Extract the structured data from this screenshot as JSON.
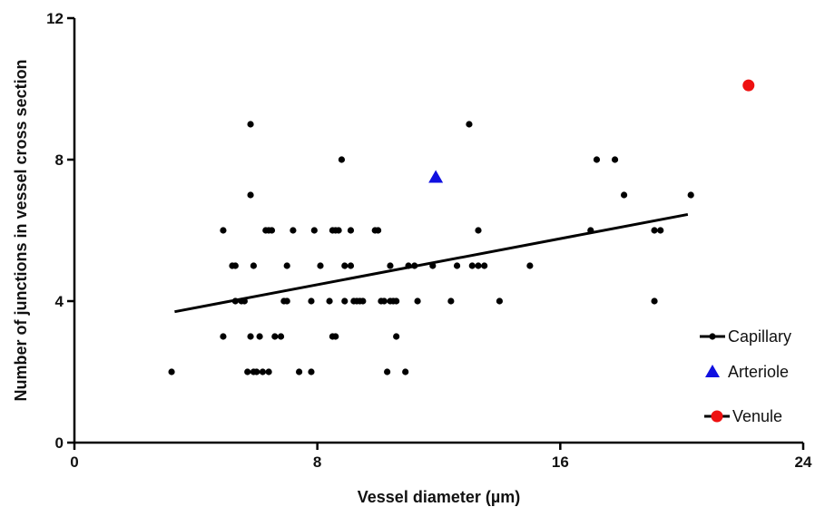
{
  "chart_data": {
    "type": "scatter",
    "title": "",
    "xlabel": "Vessel diameter (µm)",
    "ylabel": "Number of junctions in vessel cross section",
    "xlim": [
      0,
      24
    ],
    "ylim": [
      0,
      12
    ],
    "xticks": [
      0,
      8,
      16,
      24
    ],
    "yticks": [
      0,
      4,
      8,
      12
    ],
    "grid": false,
    "legend_position": "bottom-right",
    "series": [
      {
        "name": "Capillary",
        "marker": "circle-small",
        "color": "#000000",
        "points": [
          [
            3.2,
            2
          ],
          [
            4.9,
            6
          ],
          [
            4.9,
            3
          ],
          [
            5.2,
            5
          ],
          [
            5.3,
            5
          ],
          [
            5.3,
            4
          ],
          [
            5.5,
            4
          ],
          [
            5.6,
            4
          ],
          [
            5.7,
            2
          ],
          [
            5.8,
            9
          ],
          [
            5.8,
            7
          ],
          [
            5.8,
            3
          ],
          [
            5.9,
            2
          ],
          [
            5.9,
            5
          ],
          [
            6.0,
            2
          ],
          [
            6.1,
            3
          ],
          [
            6.2,
            2
          ],
          [
            6.3,
            6
          ],
          [
            6.4,
            2
          ],
          [
            6.4,
            6
          ],
          [
            6.5,
            6
          ],
          [
            6.6,
            3
          ],
          [
            6.8,
            3
          ],
          [
            6.9,
            4
          ],
          [
            7.0,
            4
          ],
          [
            7.0,
            5
          ],
          [
            7.2,
            6
          ],
          [
            7.4,
            2
          ],
          [
            7.8,
            2
          ],
          [
            7.8,
            4
          ],
          [
            7.9,
            6
          ],
          [
            8.1,
            5
          ],
          [
            8.4,
            4
          ],
          [
            8.5,
            6
          ],
          [
            8.5,
            3
          ],
          [
            8.6,
            6
          ],
          [
            8.6,
            3
          ],
          [
            8.7,
            6
          ],
          [
            8.8,
            8
          ],
          [
            8.9,
            4
          ],
          [
            8.9,
            5
          ],
          [
            9.1,
            5
          ],
          [
            9.1,
            6
          ],
          [
            9.2,
            4
          ],
          [
            9.3,
            4
          ],
          [
            9.4,
            4
          ],
          [
            9.5,
            4
          ],
          [
            9.9,
            6
          ],
          [
            10.0,
            6
          ],
          [
            10.1,
            4
          ],
          [
            10.2,
            4
          ],
          [
            10.3,
            2
          ],
          [
            10.4,
            5
          ],
          [
            10.4,
            4
          ],
          [
            10.5,
            4
          ],
          [
            10.6,
            3
          ],
          [
            10.6,
            4
          ],
          [
            10.9,
            2
          ],
          [
            11.0,
            5
          ],
          [
            11.2,
            5
          ],
          [
            11.3,
            4
          ],
          [
            11.8,
            5
          ],
          [
            12.4,
            4
          ],
          [
            12.6,
            5
          ],
          [
            13.0,
            9
          ],
          [
            13.1,
            5
          ],
          [
            13.3,
            6
          ],
          [
            13.3,
            5
          ],
          [
            13.5,
            5
          ],
          [
            14.0,
            4
          ],
          [
            15.0,
            5
          ],
          [
            17.0,
            6
          ],
          [
            17.2,
            8
          ],
          [
            17.8,
            8
          ],
          [
            18.1,
            7
          ],
          [
            19.1,
            6
          ],
          [
            19.1,
            4
          ],
          [
            19.3,
            6
          ],
          [
            20.3,
            7
          ]
        ]
      },
      {
        "name": "Arteriole",
        "marker": "triangle",
        "color": "#1010e0",
        "points": [
          [
            11.9,
            7.5
          ]
        ]
      },
      {
        "name": "Venule",
        "marker": "circle-large",
        "color": "#ee1111",
        "points": [
          [
            22.2,
            10.1
          ]
        ]
      }
    ],
    "fit_line": {
      "series": "Capillary",
      "x": [
        3.3,
        20.2
      ],
      "y": [
        3.7,
        6.45
      ],
      "color": "#000000"
    }
  }
}
